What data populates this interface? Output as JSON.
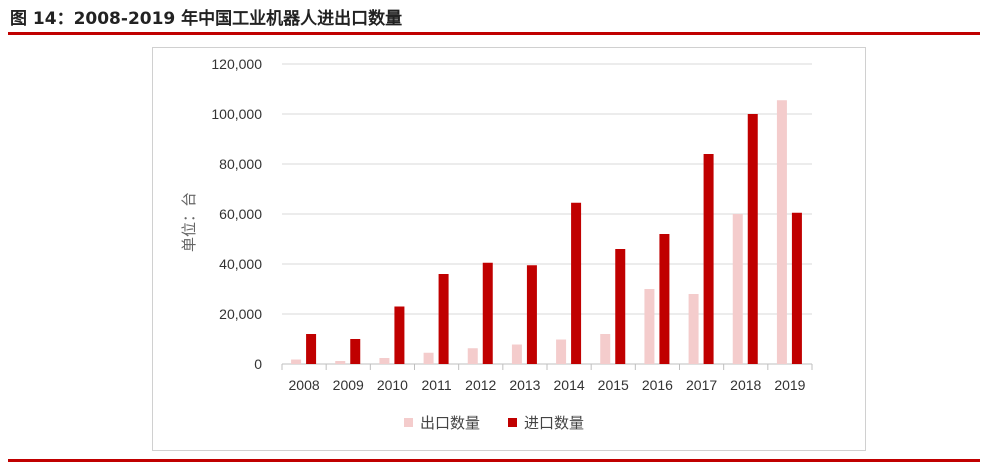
{
  "figure": {
    "title": "图 14：2008-2019 年中国工业机器人进出口数量"
  },
  "colors": {
    "rule": "#c00000",
    "export": "#f4cccc",
    "import": "#c00000",
    "grid": "#d9d9d9"
  },
  "chart_data": {
    "type": "bar",
    "title": "",
    "xlabel": "",
    "ylabel": "单位：台",
    "ylim": [
      0,
      120000
    ],
    "yticks": [
      0,
      20000,
      40000,
      60000,
      80000,
      100000,
      120000
    ],
    "ytick_labels": [
      "0",
      "20,000",
      "40,000",
      "60,000",
      "80,000",
      "100,000",
      "120,000"
    ],
    "grid": true,
    "legend_position": "bottom",
    "categories": [
      "2008",
      "2009",
      "2010",
      "2011",
      "2012",
      "2013",
      "2014",
      "2015",
      "2016",
      "2017",
      "2018",
      "2019"
    ],
    "series": [
      {
        "name": "出口数量",
        "color": "#f4cccc",
        "values": [
          1800,
          1200,
          2400,
          4500,
          6300,
          7800,
          9800,
          12000,
          30000,
          28000,
          60000,
          105500
        ]
      },
      {
        "name": "进口数量",
        "color": "#c00000",
        "values": [
          12000,
          10000,
          23000,
          36000,
          40500,
          39500,
          64500,
          46000,
          52000,
          84000,
          100000,
          60500
        ]
      }
    ]
  }
}
